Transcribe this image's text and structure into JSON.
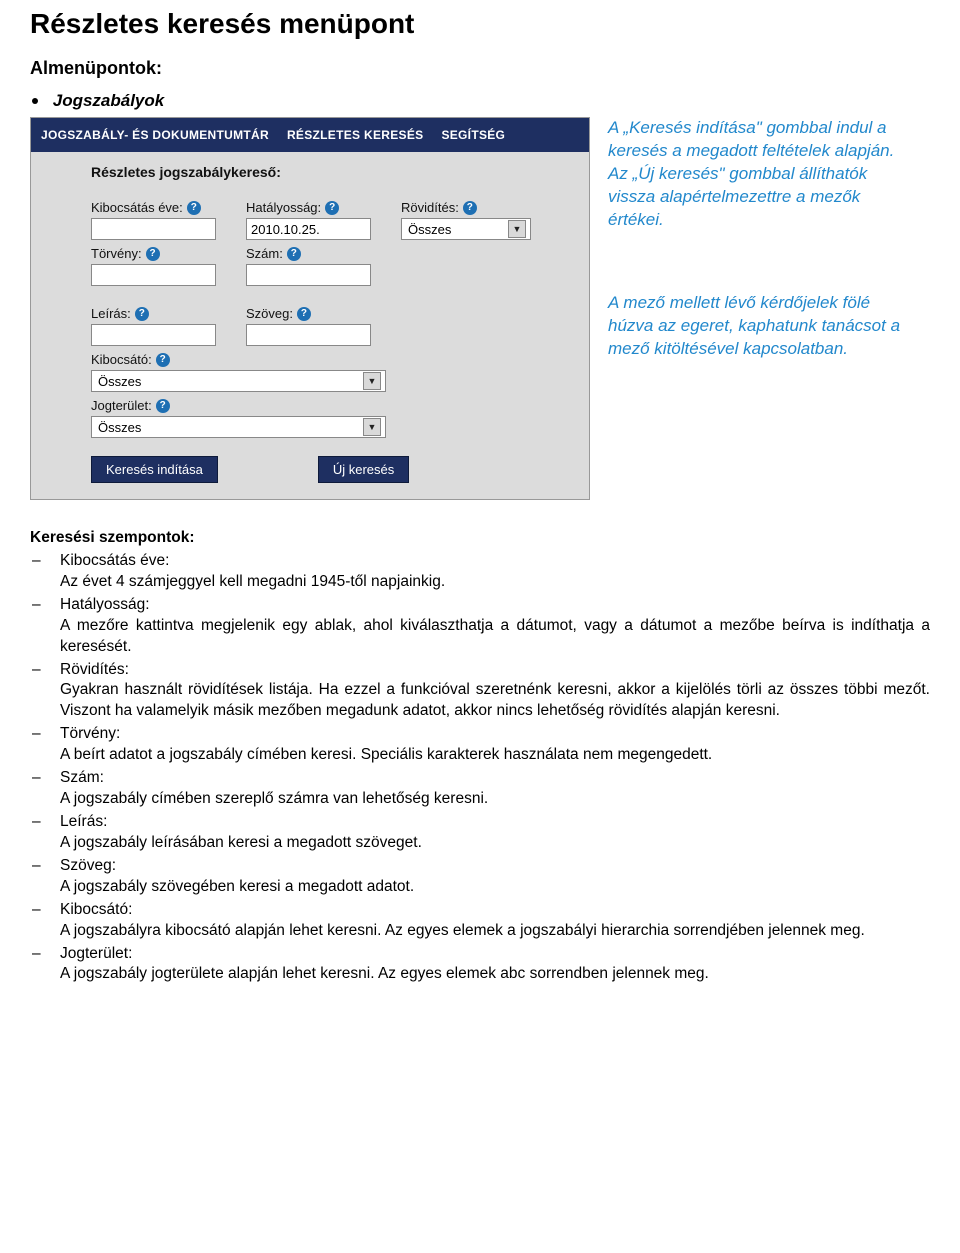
{
  "page_title": "Részletes keresés menüpont",
  "sub_heading": "Almenüpontok:",
  "bullet_label": "Jogszabályok",
  "nav": {
    "items": [
      "JOGSZABÁLY- ÉS DOKUMENTUMTÁR",
      "RÉSZLETES KERESÉS",
      "SEGÍTSÉG"
    ]
  },
  "form": {
    "heading": "Részletes jogszabálykereső:",
    "fields": {
      "kibocsatas": {
        "label": "Kibocsátás éve:",
        "value": ""
      },
      "hatalyossag": {
        "label": "Hatályosság:",
        "value": "2010.10.25."
      },
      "rovidites": {
        "label": "Rövidítés:",
        "value": "Összes"
      },
      "torveny": {
        "label": "Törvény:",
        "value": ""
      },
      "szam": {
        "label": "Szám:",
        "value": ""
      },
      "leiras": {
        "label": "Leírás:",
        "value": ""
      },
      "szoveg": {
        "label": "Szöveg:",
        "value": ""
      },
      "kibocsato": {
        "label": "Kibocsátó:",
        "value": "Összes"
      },
      "jogterulet": {
        "label": "Jogterület:",
        "value": "Összes"
      }
    },
    "buttons": {
      "search": "Keresés indítása",
      "reset": "Új keresés"
    }
  },
  "side_notes": {
    "note1": "A „Keresés indítása\" gombbal indul a keresés a megadott feltételek alapján. Az „Új keresés\" gombbal állíthatók vissza alapértelmezettre a mezők értékei.",
    "note2": "A mező mellett lévő kérdőjelek fölé húzva az egeret, kaphatunk tanácsot a mező kitöltésével kapcsolatban."
  },
  "criteria": {
    "heading": "Keresési szempontok:",
    "items": [
      {
        "label": "Kibocsátás éve:",
        "text": "Az évet 4 számjeggyel kell megadni 1945-től napjainkig."
      },
      {
        "label": "Hatályosság:",
        "text": "A mezőre kattintva megjelenik egy ablak, ahol kiválaszthatja a dátumot, vagy a dátumot a mezőbe beírva is indíthatja a keresését."
      },
      {
        "label": "Rövidítés:",
        "text": "Gyakran használt rövidítések listája. Ha ezzel a funkcióval szeretnénk keresni, akkor a kijelölés törli az összes többi mezőt. Viszont ha valamelyik másik mezőben megadunk adatot, akkor nincs lehetőség rövidítés alapján keresni."
      },
      {
        "label": "Törvény:",
        "text": "A beírt adatot a jogszabály címében keresi. Speciális karakterek használata nem megengedett."
      },
      {
        "label": "Szám:",
        "text": "A jogszabály címében szereplő számra van lehetőség keresni."
      },
      {
        "label": "Leírás:",
        "text": "A jogszabály leírásában keresi a megadott szöveget."
      },
      {
        "label": "Szöveg:",
        "text": "A jogszabály szövegében keresi a megadott adatot."
      },
      {
        "label": "Kibocsátó:",
        "text": "A jogszabályra kibocsátó alapján lehet keresni. Az egyes elemek a jogszabályi hierarchia sorrendjében jelennek meg."
      },
      {
        "label": "Jogterület:",
        "text": "A jogszabály jogterülete alapján lehet keresni. Az egyes elemek abc sorrendben jelennek meg."
      }
    ]
  },
  "colors": {
    "navbar_bg": "#1e2f61",
    "panel_bg": "#dcdcdc",
    "help_icon_bg": "#1e6fb3",
    "side_note_color": "#2288cc"
  }
}
